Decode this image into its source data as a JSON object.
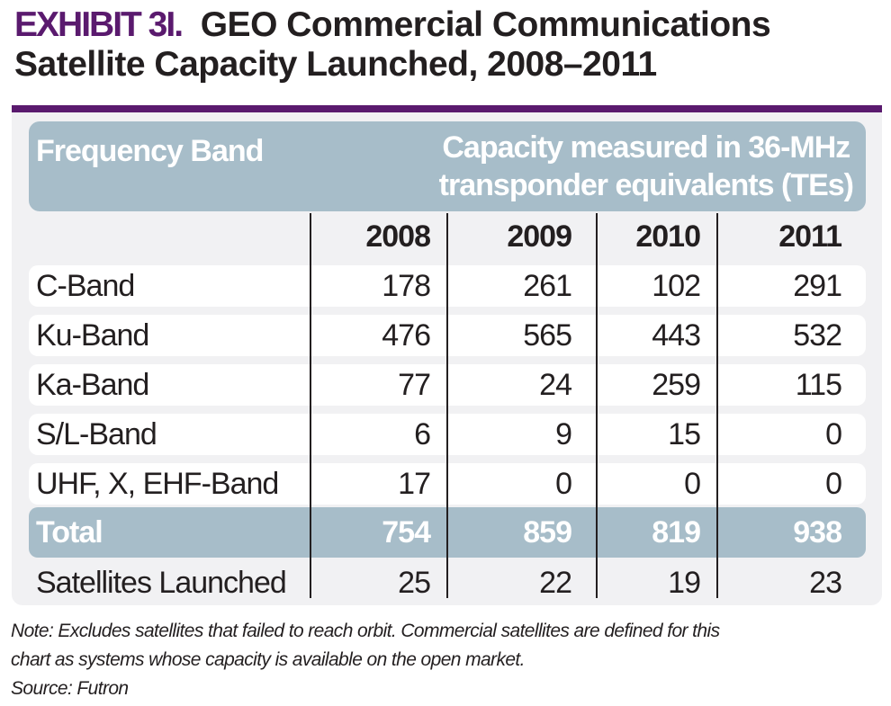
{
  "title": {
    "exhibit": "EXHIBIT 3I.",
    "line1": "GEO Commercial Communications",
    "line2": "Satellite Capacity Launched, 2008–2011"
  },
  "colors": {
    "accent": "#5a1a6e",
    "header_fill": "#a7bdc9",
    "panel": "#f1f1f3"
  },
  "table": {
    "header_band": "Frequency Band",
    "header_capacity_line1": "Capacity measured in 36-MHz",
    "header_capacity_line2": "transponder equivalents (TEs)",
    "years": [
      "2008",
      "2009",
      "2010",
      "2011"
    ],
    "rows": [
      {
        "label": "C-Band",
        "values": [
          "178",
          "261",
          "102",
          "291"
        ]
      },
      {
        "label": "Ku-Band",
        "values": [
          "476",
          "565",
          "443",
          "532"
        ]
      },
      {
        "label": "Ka-Band",
        "values": [
          "77",
          "24",
          "259",
          "115"
        ]
      },
      {
        "label": "S/L-Band",
        "values": [
          "6",
          "9",
          "15",
          "0"
        ]
      },
      {
        "label": "UHF, X, EHF-Band",
        "values": [
          "17",
          "0",
          "0",
          "0"
        ]
      }
    ],
    "total": {
      "label": "Total",
      "values": [
        "754",
        "859",
        "819",
        "938"
      ]
    },
    "satellites": {
      "label": "Satellites Launched",
      "values": [
        "25",
        "22",
        "19",
        "23"
      ]
    }
  },
  "note": {
    "line1": "Note:  Excludes satellites that failed to reach orbit. Commercial satellites are defined for this",
    "line2": "chart as systems whose capacity is available on the open market.",
    "source": "Source: Futron"
  }
}
